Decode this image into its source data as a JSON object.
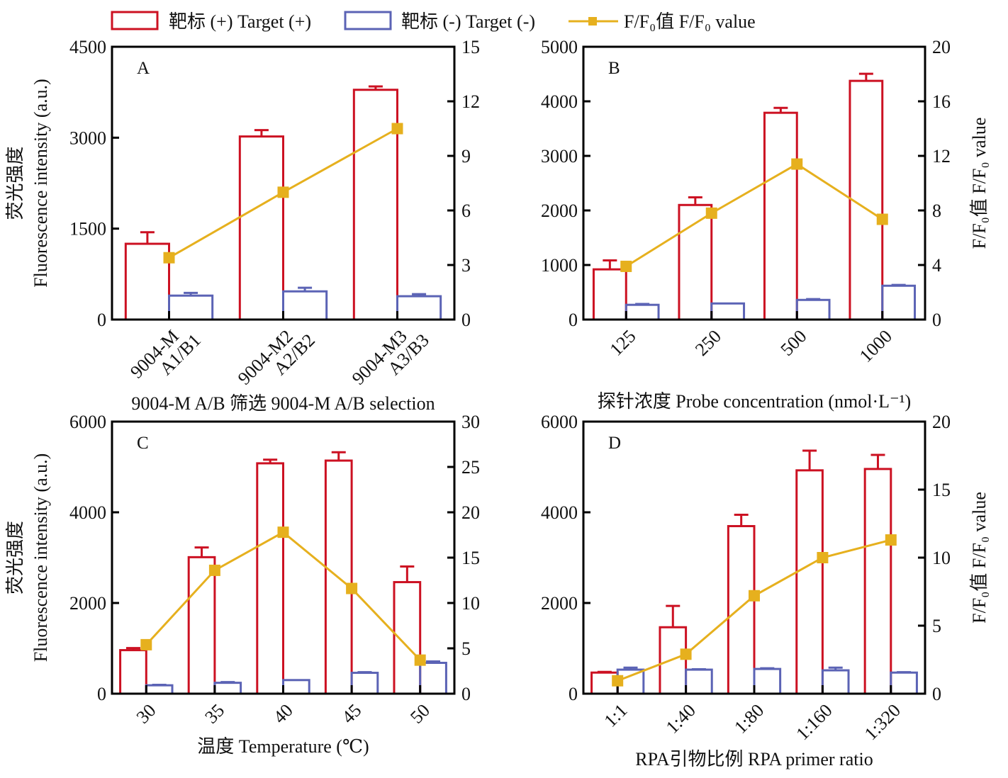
{
  "legend": {
    "items": [
      {
        "label": "靶标 (+) Target (+)",
        "kind": "bar",
        "color": "#cc1122"
      },
      {
        "label": "靶标 (-) Target (-)",
        "kind": "bar",
        "color": "#5b63b5"
      },
      {
        "label": "F/F₀值 F/F₀ value",
        "kind": "line",
        "color": "#e6b01e"
      }
    ]
  },
  "colors": {
    "target_pos": "#cc1122",
    "target_neg": "#5b63b5",
    "ratio": "#e6b01e",
    "axis": "#000000"
  },
  "chart_data": [
    {
      "type": "bar",
      "panel": "A",
      "title": "",
      "categories": [
        "9004-M\nA1/B1",
        "9004-M2\nA2/B2",
        "9004-M3\nA3/B3"
      ],
      "xlabel": "9004-M A/B 筛选 9004-M A/B selection",
      "ylabel": "荧光强度\nFluorescence intensity (a.u.)",
      "ylabel_right": "",
      "ylim": [
        0,
        4500
      ],
      "yticks": [
        0,
        1500,
        3000,
        4500
      ],
      "ylim_right": [
        0,
        15
      ],
      "yticks_right": [
        0,
        3,
        6,
        9,
        12,
        15
      ],
      "series": [
        {
          "name": "靶标 (+) Target (+)",
          "type": "bar",
          "axis": "left",
          "values": [
            1250,
            3020,
            3790
          ],
          "errors": [
            190,
            105,
            55
          ]
        },
        {
          "name": "靶标 (-) Target (-)",
          "type": "bar",
          "axis": "left",
          "values": [
            395,
            465,
            385
          ],
          "errors": [
            45,
            60,
            35
          ]
        },
        {
          "name": "F/F0值 F/F0 value",
          "type": "line",
          "axis": "right",
          "values": [
            3.4,
            7.0,
            10.5
          ]
        }
      ]
    },
    {
      "type": "bar",
      "panel": "B",
      "title": "",
      "categories": [
        "125",
        "250",
        "500",
        "1000"
      ],
      "xlabel": "探针浓度 Probe concentration (nmol·L⁻¹)",
      "ylabel": "",
      "ylabel_right": "F/F0值 F/F0 value",
      "ylim": [
        0,
        5000
      ],
      "yticks": [
        0,
        1000,
        2000,
        3000,
        4000,
        5000
      ],
      "ylim_right": [
        0,
        20
      ],
      "yticks_right": [
        0,
        4,
        8,
        12,
        16,
        20
      ],
      "series": [
        {
          "name": "靶标 (+) Target (+)",
          "type": "bar",
          "axis": "left",
          "values": [
            920,
            2100,
            3790,
            4375
          ],
          "errors": [
            165,
            140,
            90,
            130
          ]
        },
        {
          "name": "靶标 (-) Target (-)",
          "type": "bar",
          "axis": "left",
          "values": [
            270,
            295,
            360,
            620
          ],
          "errors": [
            15,
            0,
            15,
            15
          ]
        },
        {
          "name": "F/F0值 F/F0 value",
          "type": "line",
          "axis": "right",
          "values": [
            3.9,
            7.8,
            11.4,
            7.35
          ]
        }
      ]
    },
    {
      "type": "bar",
      "panel": "C",
      "title": "",
      "categories": [
        "30",
        "35",
        "40",
        "45",
        "50"
      ],
      "xlabel": "温度 Temperature (℃)",
      "ylabel": "荧光强度\nFluorescence intensity (a.u.)",
      "ylabel_right": "",
      "ylim": [
        0,
        6000
      ],
      "yticks": [
        0,
        2000,
        4000,
        6000
      ],
      "ylim_right": [
        0,
        30
      ],
      "yticks_right": [
        0,
        5,
        10,
        15,
        20,
        25,
        30
      ],
      "series": [
        {
          "name": "靶标 (+) Target (+)",
          "type": "bar",
          "axis": "left",
          "values": [
            960,
            3010,
            5080,
            5140,
            2460
          ],
          "errors": [
            45,
            215,
            80,
            185,
            345
          ]
        },
        {
          "name": "靶标 (-) Target (-)",
          "type": "bar",
          "axis": "left",
          "values": [
            185,
            240,
            300,
            460,
            680
          ],
          "errors": [
            10,
            15,
            0,
            15,
            30
          ]
        },
        {
          "name": "F/F0值 F/F0 value",
          "type": "line",
          "axis": "right",
          "values": [
            5.4,
            13.6,
            17.8,
            11.6,
            3.7
          ]
        }
      ]
    },
    {
      "type": "bar",
      "panel": "D",
      "title": "",
      "categories": [
        "1:1",
        "1:40",
        "1:80",
        "1:160",
        "1:320"
      ],
      "xlabel": "RPA引物比例 RPA primer ratio",
      "ylabel": "",
      "ylabel_right": "F/F0值 F/F0 value",
      "ylim": [
        0,
        6000
      ],
      "yticks": [
        0,
        2000,
        4000,
        6000
      ],
      "ylim_right": [
        0,
        20
      ],
      "yticks_right": [
        0,
        5,
        10,
        15,
        20
      ],
      "series": [
        {
          "name": "靶标 (+) Target (+)",
          "type": "bar",
          "axis": "left",
          "values": [
            465,
            1465,
            3695,
            4925,
            4955
          ],
          "errors": [
            15,
            470,
            250,
            435,
            310
          ]
        },
        {
          "name": "靶标 (-) Target (-)",
          "type": "bar",
          "axis": "left",
          "values": [
            530,
            530,
            545,
            515,
            465
          ],
          "errors": [
            45,
            10,
            15,
            60,
            10
          ]
        },
        {
          "name": "F/F0值 F/F0 value",
          "type": "line",
          "axis": "right",
          "values": [
            0.95,
            2.9,
            7.2,
            10.0,
            11.3
          ]
        }
      ]
    }
  ]
}
